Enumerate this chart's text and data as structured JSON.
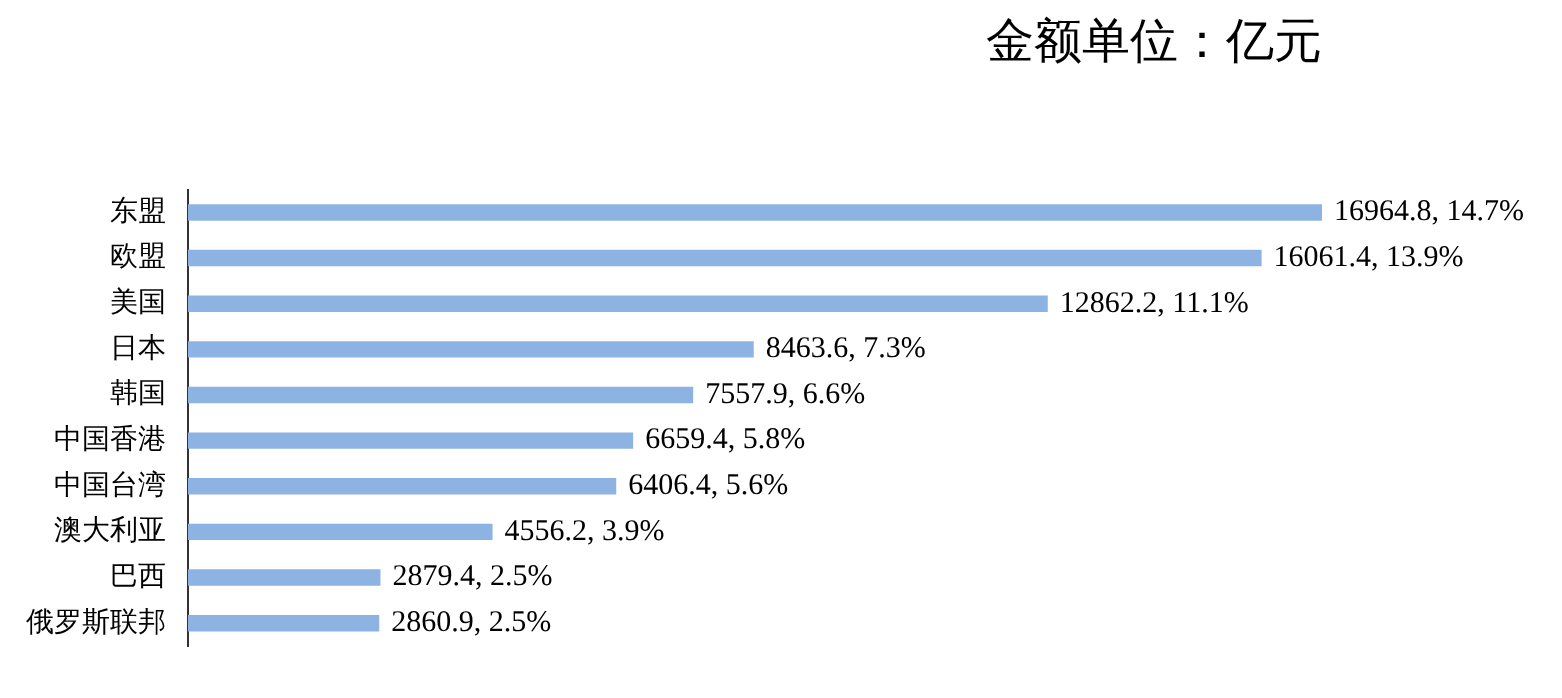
{
  "chart_data": {
    "type": "bar",
    "orientation": "horizontal",
    "title": "金额单位：亿元",
    "categories": [
      "东盟",
      "欧盟",
      "美国",
      "日本",
      "韩国",
      "中国香港",
      "中国台湾",
      "澳大利亚",
      "巴西",
      "俄罗斯联邦"
    ],
    "values": [
      16964.8,
      16061.4,
      12862.2,
      8463.6,
      7557.9,
      6659.4,
      6406.4,
      4556.2,
      2879.4,
      2860.9
    ],
    "value_labels": [
      "16964.8, 14.7%",
      "16061.4, 13.9%",
      "12862.2, 11.1%",
      "8463.6, 7.3%",
      "7557.9, 6.6%",
      "6659.4, 5.8%",
      "6406.4, 5.6%",
      "4556.2, 3.9%",
      "2879.4, 2.5%",
      "2860.9, 2.5%"
    ],
    "color": "#8db3e2",
    "legend": false,
    "tick_labels": "y"
  }
}
